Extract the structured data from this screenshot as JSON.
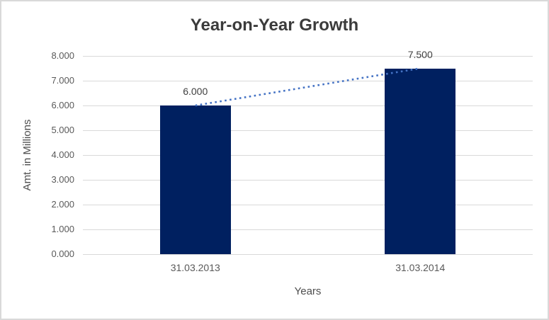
{
  "chart_data": {
    "type": "bar",
    "title": "Year-on-Year Growth",
    "xlabel": "Years",
    "ylabel": "Amt. in Millions",
    "categories": [
      "31.03.2013",
      "31.03.2014"
    ],
    "values": [
      6.0,
      7.5
    ],
    "data_labels": [
      "6.000",
      "7.500"
    ],
    "ylim": [
      0,
      8
    ],
    "ytick_labels": [
      "0.000",
      "1.000",
      "2.000",
      "3.000",
      "4.000",
      "5.000",
      "6.000",
      "7.000",
      "8.000"
    ],
    "grid": "horizontal",
    "legend_position": "none",
    "trendline": {
      "style": "dotted",
      "from": [
        6.0,
        7.5
      ]
    },
    "colors": {
      "bar_fill": "#002060",
      "trendline": "#4472c4",
      "gridline": "#d9d9d9",
      "title_text": "#3b3b3b",
      "axis_text": "#595959",
      "frame_border": "#d9d9d9",
      "background": "#ffffff"
    }
  }
}
